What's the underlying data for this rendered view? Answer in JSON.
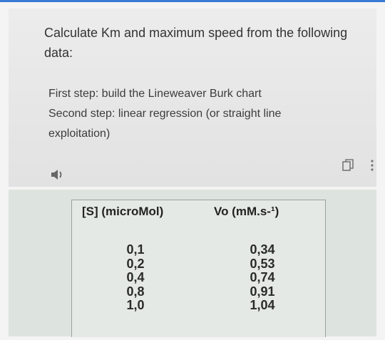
{
  "question": {
    "lines": [
      "Calculate Km and maximum speed from the following",
      "data:"
    ]
  },
  "steps": [
    "First step: build the Lineweaver Burk chart",
    "Second step: linear regression (or straight line",
    "exploitation)"
  ],
  "table": {
    "header": [
      "[S] (microMol)",
      "Vo (mM.s-¹)"
    ],
    "rows": [
      [
        "0,1",
        "0,34"
      ],
      [
        "0,2",
        "0,53"
      ],
      [
        "0,4",
        "0,74"
      ],
      [
        "0,8",
        "0,91"
      ],
      [
        "1,0",
        "1,04"
      ]
    ]
  }
}
